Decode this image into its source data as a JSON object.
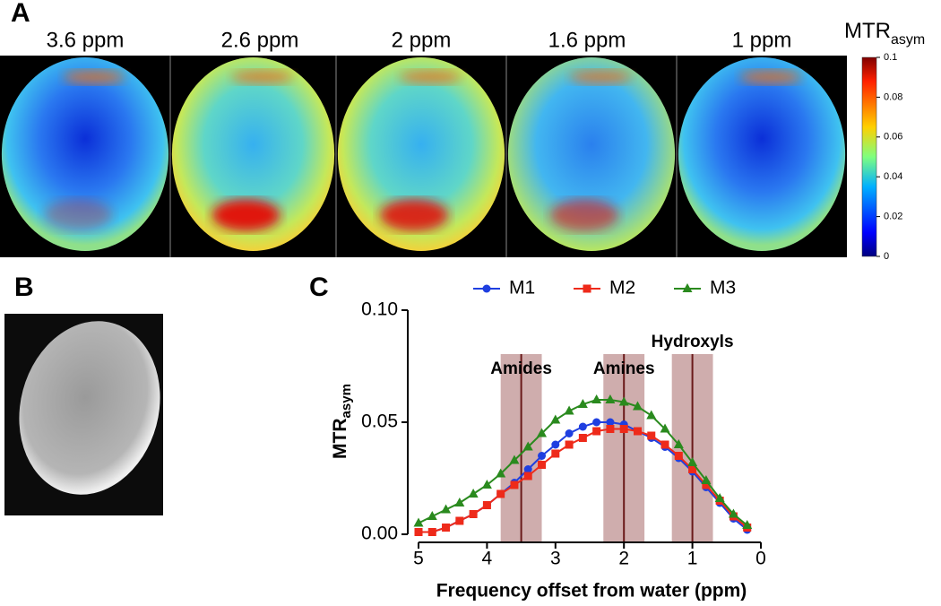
{
  "panels": {
    "a": "A",
    "b": "B",
    "c": "C"
  },
  "heatmaps": {
    "labels": [
      "3.6 ppm",
      "2.6 ppm",
      "2 ppm",
      "1.6 ppm",
      "1 ppm"
    ]
  },
  "colorbar": {
    "title": "MTR",
    "title_sub": "asym",
    "lim": [
      0,
      0.1
    ],
    "ticks": [
      0,
      0.02,
      0.04,
      0.06,
      0.08,
      0.1
    ]
  },
  "chart_data": {
    "type": "line",
    "xlabel": "Frequency offset from water (ppm)",
    "ylabel": "MTR",
    "ylabel_sub": "asym",
    "x": [
      5,
      4.8,
      4.6,
      4.4,
      4.2,
      4,
      3.8,
      3.6,
      3.4,
      3.2,
      3,
      2.8,
      2.6,
      2.4,
      2.2,
      2,
      1.8,
      1.6,
      1.4,
      1.2,
      1,
      0.8,
      0.6,
      0.4,
      0.2
    ],
    "series": [
      {
        "name": "M1",
        "color": "#1f3fe0",
        "marker": "circle",
        "values": [
          0.001,
          0.001,
          0.003,
          0.006,
          0.009,
          0.013,
          0.018,
          0.023,
          0.029,
          0.035,
          0.04,
          0.045,
          0.048,
          0.05,
          0.05,
          0.049,
          0.046,
          0.043,
          0.039,
          0.034,
          0.028,
          0.021,
          0.014,
          0.007,
          0.002
        ]
      },
      {
        "name": "M2",
        "color": "#ee2a1a",
        "marker": "square",
        "values": [
          0.001,
          0.001,
          0.003,
          0.006,
          0.009,
          0.013,
          0.018,
          0.022,
          0.026,
          0.031,
          0.036,
          0.04,
          0.043,
          0.046,
          0.047,
          0.047,
          0.046,
          0.044,
          0.04,
          0.035,
          0.029,
          0.022,
          0.015,
          0.008,
          0.003
        ]
      },
      {
        "name": "M3",
        "color": "#2a8a1e",
        "marker": "triangle",
        "values": [
          0.005,
          0.008,
          0.011,
          0.014,
          0.018,
          0.022,
          0.027,
          0.033,
          0.039,
          0.045,
          0.051,
          0.055,
          0.058,
          0.06,
          0.06,
          0.059,
          0.057,
          0.053,
          0.047,
          0.04,
          0.032,
          0.024,
          0.016,
          0.009,
          0.004
        ]
      }
    ],
    "xlim": [
      5,
      0
    ],
    "xticks": [
      5,
      4,
      3,
      2,
      1,
      0
    ],
    "ylim": [
      0,
      0.1
    ],
    "yticks": [
      {
        "value": 0,
        "label": "0.00"
      },
      {
        "value": 0.05,
        "label": "0.05"
      },
      {
        "value": 0.1,
        "label": "0.10"
      }
    ],
    "legend": "top",
    "regions": [
      {
        "label": "Amides",
        "center": 3.5,
        "from": 3.8,
        "to": 3.2
      },
      {
        "label": "Amines",
        "center": 2,
        "from": 2.3,
        "to": 1.7
      },
      {
        "label": "Hydroxyls",
        "center": 1,
        "from": 1.3,
        "to": 0.7
      }
    ]
  }
}
